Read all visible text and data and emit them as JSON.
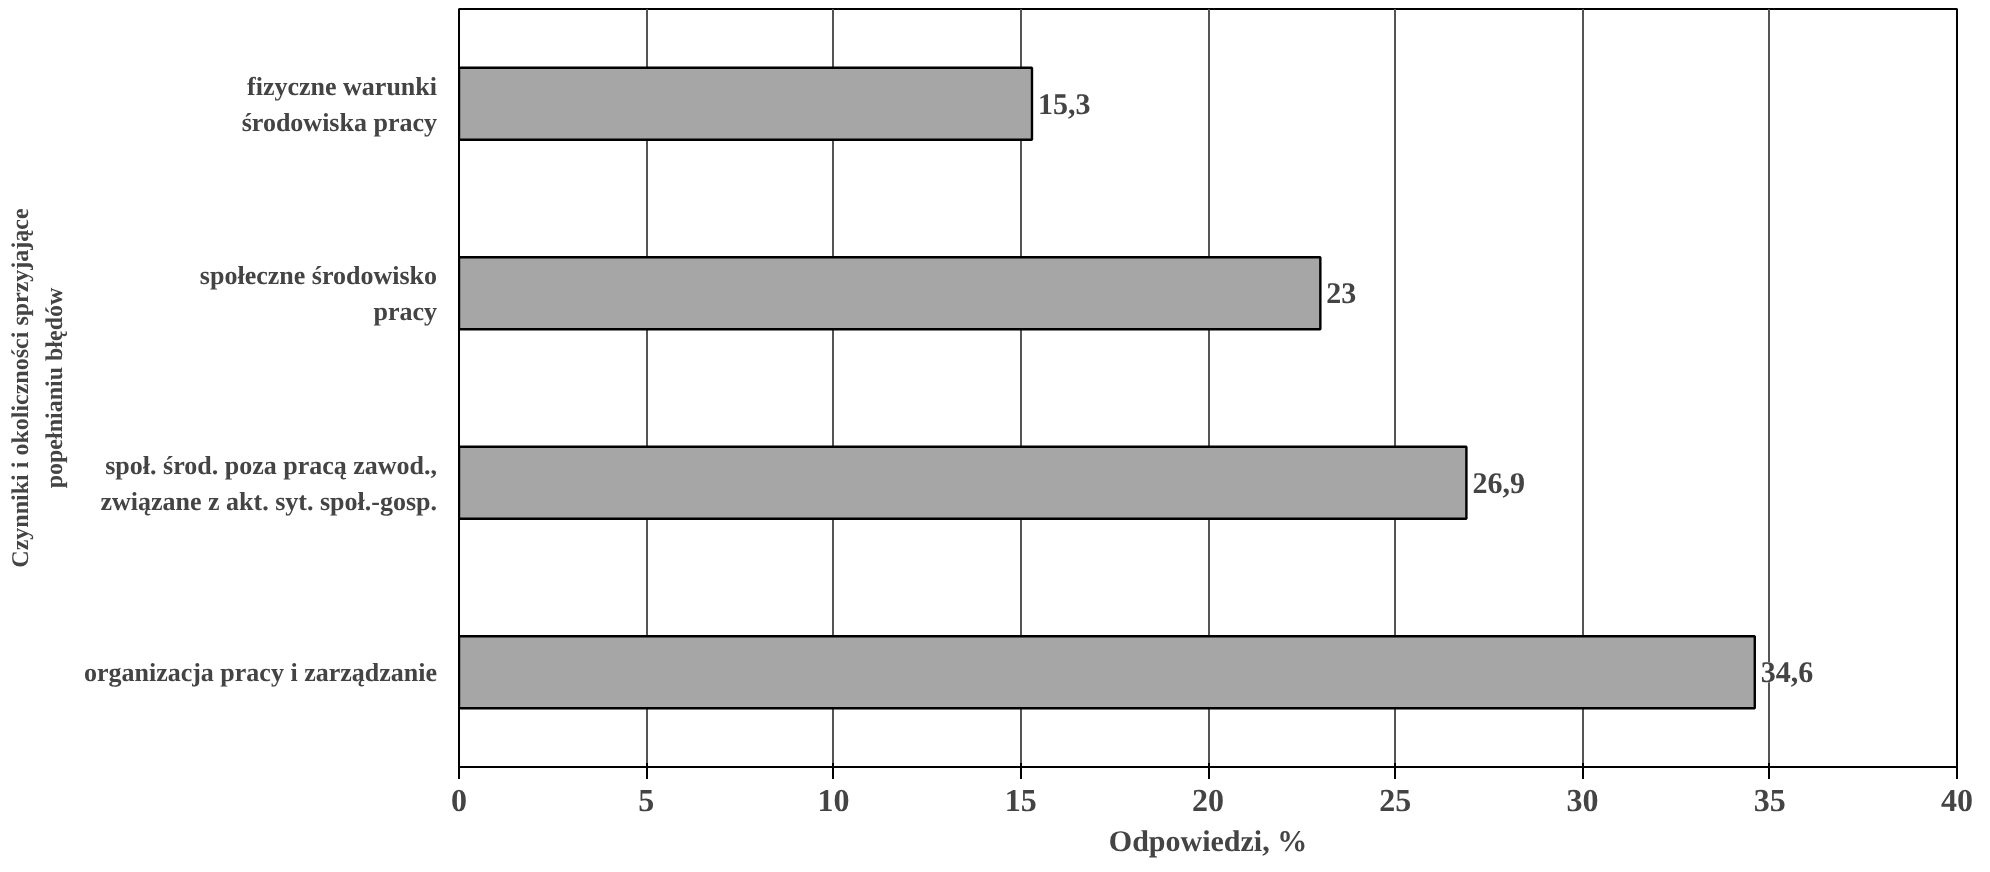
{
  "chart_data": {
    "type": "bar",
    "orientation": "horizontal",
    "xlabel": "Odpowiedzi, %",
    "ylabel": "Czynniki i okoliczności sprzyjające\npopełnianiu błędów",
    "categories": [
      "fizyczne warunki\nśrodowiska pracy",
      "społeczne środowisko\npracy",
      "społ. środ. poza pracą zawod.,\nzwiązane z akt. syt. społ.-gosp.",
      "organizacja pracy i zarządzanie"
    ],
    "values": [
      15.3,
      23,
      26.9,
      34.6
    ],
    "value_labels": [
      "15,3",
      "23",
      "26,9",
      "34,6"
    ],
    "color": "#a6a6a6",
    "xlim": [
      0,
      40
    ],
    "xticks": [
      0,
      5,
      10,
      15,
      20,
      25,
      30,
      35,
      40
    ],
    "grid": "x"
  }
}
